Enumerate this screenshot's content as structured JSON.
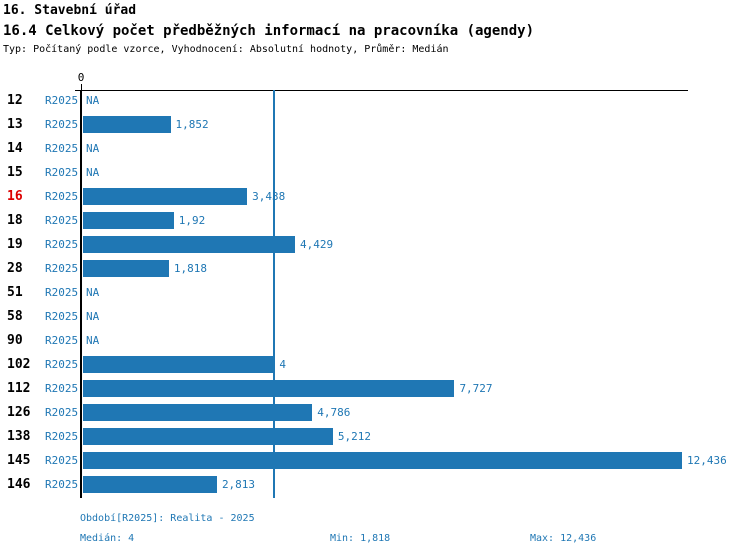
{
  "header": {
    "title_line1": "16. Stavební úřad",
    "title_line2": "16.4 Celkový počet předběžných informací na pracovníka (agendy)",
    "subtitle": "Typ: Počítaný podle vzorce, Vyhodnocení: Absolutní hodnoty, Průměr: Medián"
  },
  "colors": {
    "bar": "#1f77b4",
    "accent_text": "#1f77b4",
    "highlight_category": "#dd0000",
    "category_text": "#000000",
    "axis": "#000000"
  },
  "chart_data": {
    "type": "bar",
    "orientation": "horizontal",
    "title": "16.4 Celkový počet předběžných informací na pracovníka (agendy)",
    "axis_tick_label": "0",
    "xlim": [
      0,
      12.55
    ],
    "grid": false,
    "median_value": 4,
    "series_name": "R2025",
    "categories": [
      "12",
      "13",
      "14",
      "15",
      "16",
      "18",
      "19",
      "28",
      "51",
      "58",
      "90",
      "102",
      "112",
      "126",
      "138",
      "145",
      "146"
    ],
    "rows": [
      {
        "category": "12",
        "period": "R2025",
        "value": null,
        "label": "NA",
        "highlight": false
      },
      {
        "category": "13",
        "period": "R2025",
        "value": 1.852,
        "label": "1,852",
        "highlight": false
      },
      {
        "category": "14",
        "period": "R2025",
        "value": null,
        "label": "NA",
        "highlight": false
      },
      {
        "category": "15",
        "period": "R2025",
        "value": null,
        "label": "NA",
        "highlight": false
      },
      {
        "category": "16",
        "period": "R2025",
        "value": 3.438,
        "label": "3,438",
        "highlight": true
      },
      {
        "category": "18",
        "period": "R2025",
        "value": 1.92,
        "label": "1,92",
        "highlight": false
      },
      {
        "category": "19",
        "period": "R2025",
        "value": 4.429,
        "label": "4,429",
        "highlight": false
      },
      {
        "category": "28",
        "period": "R2025",
        "value": 1.818,
        "label": "1,818",
        "highlight": false
      },
      {
        "category": "51",
        "period": "R2025",
        "value": null,
        "label": "NA",
        "highlight": false
      },
      {
        "category": "58",
        "period": "R2025",
        "value": null,
        "label": "NA",
        "highlight": false
      },
      {
        "category": "90",
        "period": "R2025",
        "value": null,
        "label": "NA",
        "highlight": false
      },
      {
        "category": "102",
        "period": "R2025",
        "value": 4,
        "label": "4",
        "highlight": false
      },
      {
        "category": "112",
        "period": "R2025",
        "value": 7.727,
        "label": "7,727",
        "highlight": false
      },
      {
        "category": "126",
        "period": "R2025",
        "value": 4.786,
        "label": "4,786",
        "highlight": false
      },
      {
        "category": "138",
        "period": "R2025",
        "value": 5.212,
        "label": "5,212",
        "highlight": false
      },
      {
        "category": "145",
        "period": "R2025",
        "value": 12.436,
        "label": "12,436",
        "highlight": false
      },
      {
        "category": "146",
        "period": "R2025",
        "value": 2.813,
        "label": "2,813",
        "highlight": false
      }
    ]
  },
  "footer": {
    "period_note": "Období[R2025]: Realita - 2025",
    "median_label": "Medián: 4",
    "min_label": "Min: 1,818",
    "max_label": "Max: 12,436"
  }
}
